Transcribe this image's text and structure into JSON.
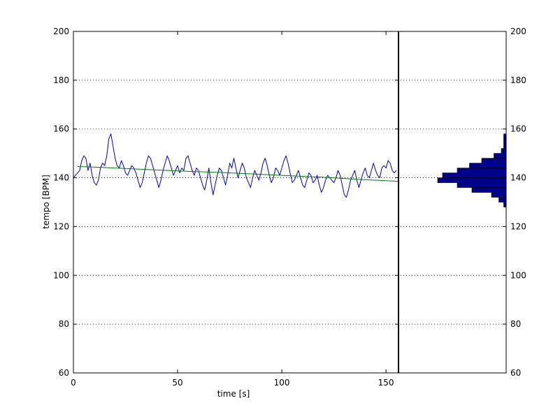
{
  "chart_data": {
    "type": "line",
    "xlabel": "time [s]",
    "ylabel": "tempo [BPM]",
    "xlim": [
      0,
      156
    ],
    "ylim": [
      60,
      200
    ],
    "x_ticks": [
      0,
      50,
      100,
      150
    ],
    "y_ticks": [
      60,
      80,
      100,
      120,
      140,
      160,
      180,
      200
    ],
    "grid": "horizontal dotted",
    "marker_x": 156,
    "colors": {
      "tempo": "#0000bb",
      "trend": "#007a00",
      "hist_fill": "#00008b",
      "axes": "#000000"
    },
    "series": [
      {
        "key": "tempo",
        "x": [
          0,
          1,
          2,
          3,
          4,
          5,
          6,
          7,
          8,
          9,
          10,
          11,
          12,
          13,
          14,
          15,
          16,
          17,
          18,
          19,
          20,
          21,
          22,
          23,
          24,
          25,
          26,
          27,
          28,
          29,
          30,
          31,
          32,
          33,
          34,
          35,
          36,
          37,
          38,
          39,
          40,
          41,
          42,
          43,
          44,
          45,
          46,
          47,
          48,
          49,
          50,
          51,
          52,
          53,
          54,
          55,
          56,
          57,
          58,
          59,
          60,
          61,
          62,
          63,
          64,
          65,
          66,
          67,
          68,
          69,
          70,
          71,
          72,
          73,
          74,
          75,
          76,
          77,
          78,
          79,
          80,
          81,
          82,
          83,
          84,
          85,
          86,
          87,
          88,
          89,
          90,
          91,
          92,
          93,
          94,
          95,
          96,
          97,
          98,
          99,
          100,
          101,
          102,
          103,
          104,
          105,
          106,
          107,
          108,
          109,
          110,
          111,
          112,
          113,
          114,
          115,
          116,
          117,
          118,
          119,
          120,
          121,
          122,
          123,
          124,
          125,
          126,
          127,
          128,
          129,
          130,
          131,
          132,
          133,
          134,
          135,
          136,
          137,
          138,
          139,
          140,
          141,
          142,
          143,
          144,
          145,
          146,
          147,
          148,
          149,
          150,
          151,
          152,
          153,
          154,
          155
        ],
        "values": [
          140,
          141,
          142,
          143,
          147,
          149,
          148,
          143,
          146,
          141,
          138,
          137,
          139,
          144,
          146,
          145,
          149,
          156,
          158,
          153,
          148,
          145,
          144,
          147,
          145,
          142,
          141,
          143,
          145,
          144,
          142,
          139,
          136,
          138,
          142,
          146,
          149,
          148,
          145,
          142,
          139,
          136,
          139,
          143,
          146,
          149,
          147,
          144,
          141,
          143,
          145,
          142,
          144,
          143,
          148,
          149,
          146,
          143,
          141,
          144,
          143,
          140,
          137,
          135,
          139,
          144,
          138,
          133,
          137,
          141,
          144,
          143,
          140,
          137,
          141,
          146,
          144,
          148,
          144,
          140,
          143,
          146,
          144,
          140,
          138,
          136,
          140,
          143,
          141,
          139,
          142,
          146,
          148,
          145,
          141,
          138,
          140,
          144,
          143,
          141,
          144,
          147,
          149,
          146,
          142,
          138,
          139,
          141,
          143,
          140,
          137,
          136,
          139,
          142,
          141,
          138,
          139,
          141,
          137,
          134,
          136,
          139,
          141,
          140,
          139,
          138,
          140,
          143,
          141,
          137,
          133,
          132,
          135,
          139,
          141,
          143,
          139,
          136,
          139,
          142,
          144,
          141,
          140,
          143,
          146,
          143,
          141,
          140,
          144,
          145,
          144,
          147,
          146,
          143,
          142,
          143
        ],
        "stroke": "#0000bb"
      },
      {
        "key": "trend",
        "x": [
          2,
          10,
          20,
          30,
          40,
          50,
          60,
          70,
          80,
          90,
          100,
          110,
          120,
          130,
          140,
          150,
          156
        ],
        "values": [
          144.6,
          144.4,
          144.0,
          143.6,
          143.2,
          142.8,
          142.5,
          142.2,
          141.8,
          141.4,
          141.0,
          140.6,
          140.2,
          139.7,
          139.2,
          138.8,
          138.5
        ],
        "stroke": "#007a00"
      }
    ],
    "histogram": {
      "bins": [
        129,
        131,
        133,
        135,
        137,
        139,
        141,
        143,
        145,
        147,
        149,
        151,
        153,
        155,
        157
      ],
      "counts": [
        1,
        3,
        6,
        14,
        20,
        28,
        26,
        20,
        15,
        10,
        5,
        2,
        1,
        1,
        1
      ]
    }
  }
}
